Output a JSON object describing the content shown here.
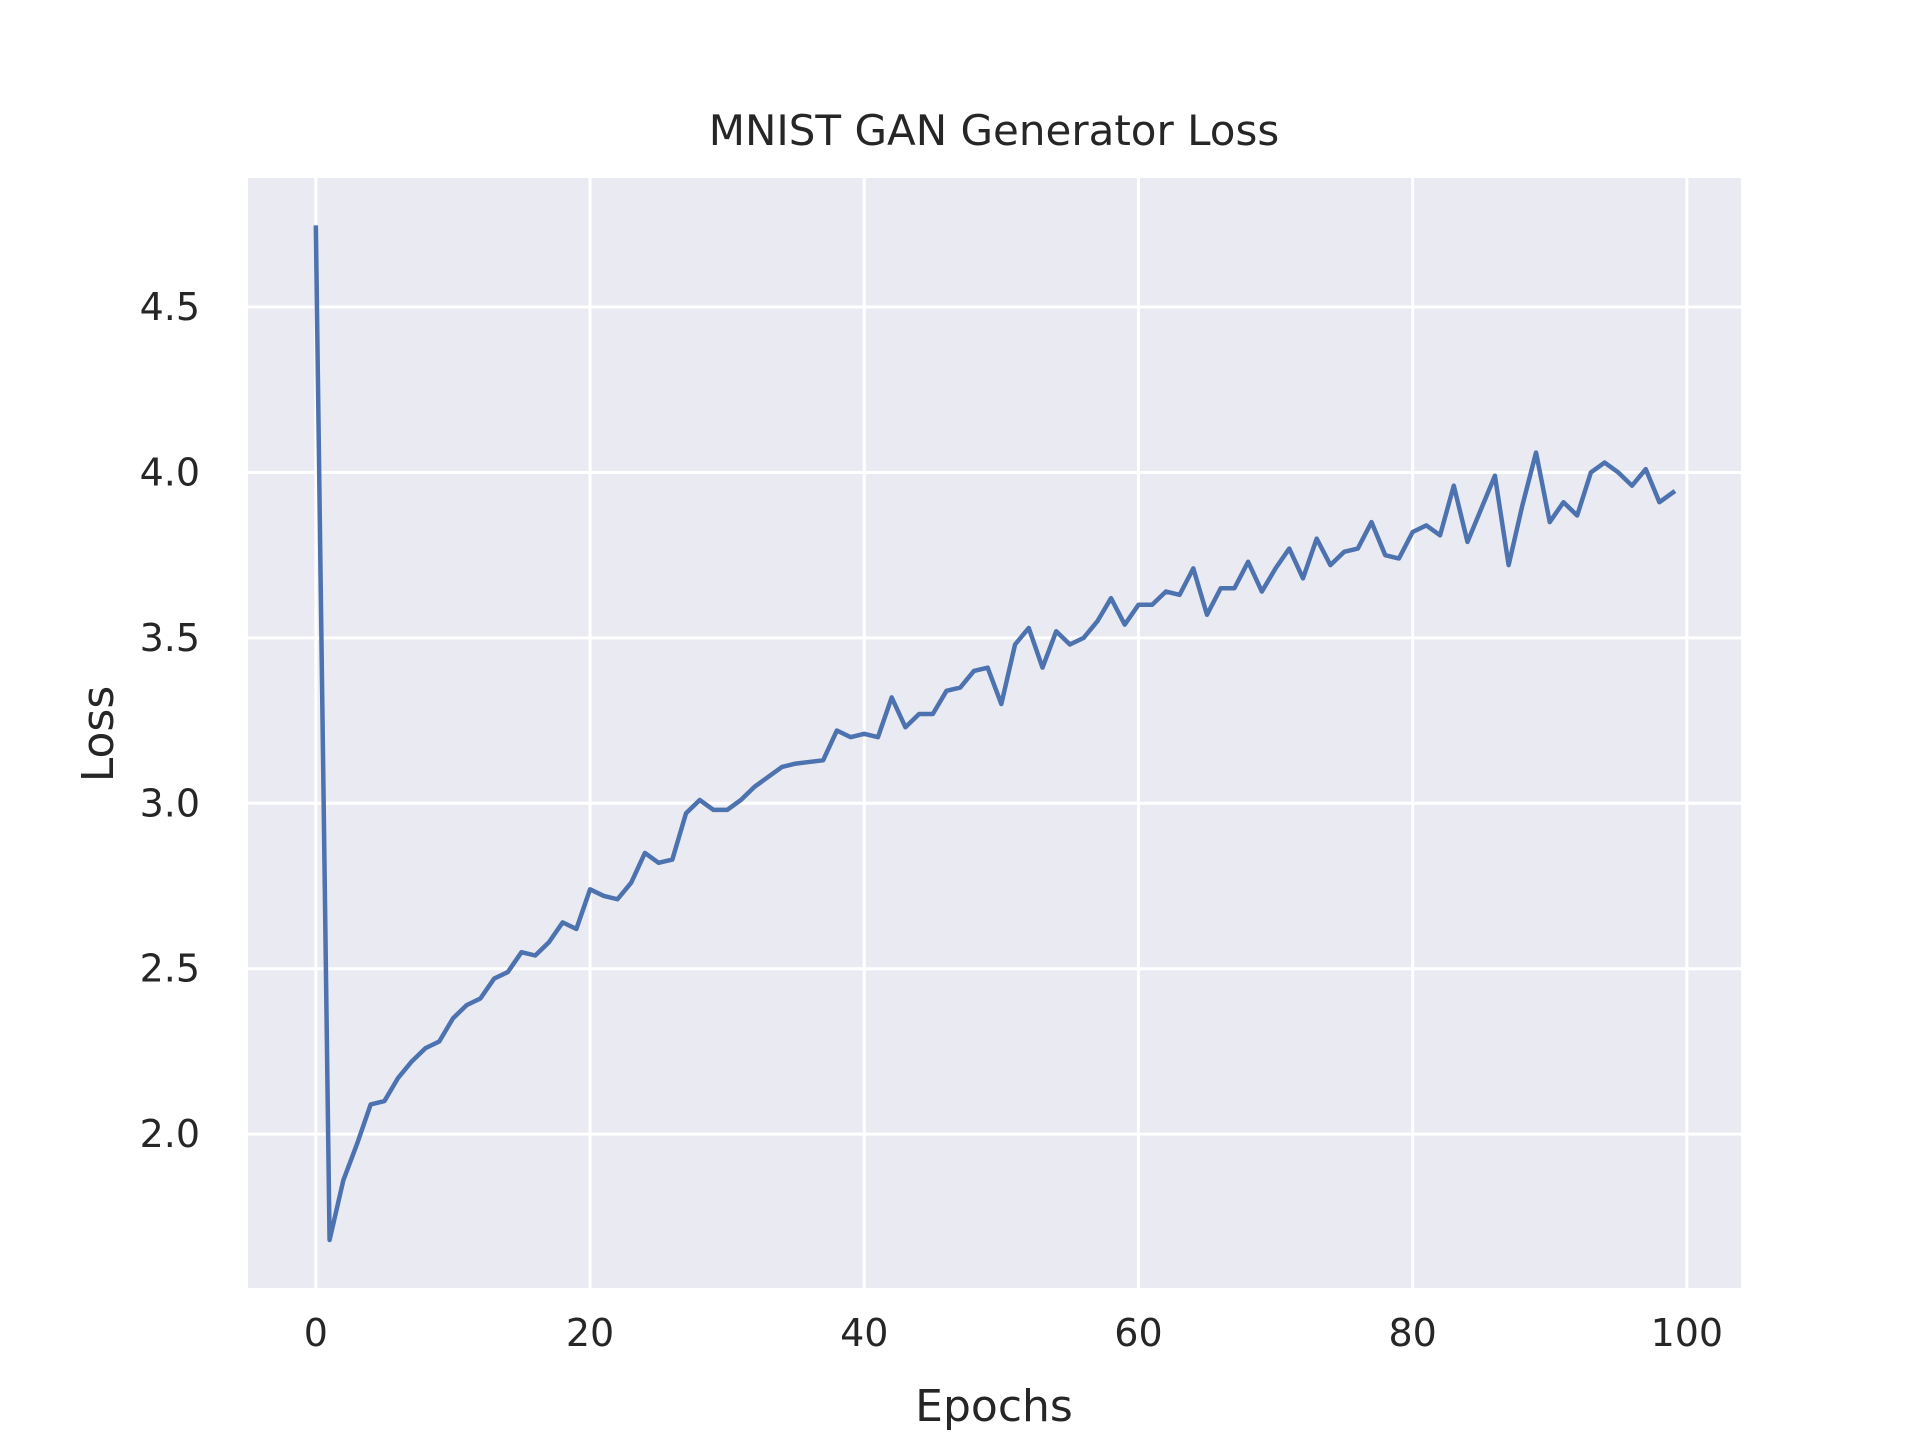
{
  "chart_data": {
    "type": "line",
    "title": "MNIST GAN Generator Loss",
    "xlabel": "Epochs",
    "ylabel": "Loss",
    "xlim": [
      -4.95,
      103.95
    ],
    "ylim": [
      1.535,
      4.89
    ],
    "x_ticks": [
      0,
      20,
      40,
      60,
      80,
      100
    ],
    "x_tick_labels": [
      "0",
      "20",
      "40",
      "60",
      "80",
      "100"
    ],
    "y_ticks": [
      2.0,
      2.5,
      3.0,
      3.5,
      4.0,
      4.5
    ],
    "y_tick_labels": [
      "2.0",
      "2.5",
      "3.0",
      "3.5",
      "4.0",
      "4.5"
    ],
    "grid": true,
    "background_color": "#eaeaf2",
    "grid_color": "#ffffff",
    "series": [
      {
        "color": "#4c72b0",
        "x": [
          0,
          1,
          2,
          3,
          4,
          5,
          6,
          7,
          8,
          9,
          10,
          11,
          12,
          13,
          14,
          15,
          16,
          17,
          18,
          19,
          20,
          21,
          22,
          23,
          24,
          25,
          26,
          27,
          28,
          29,
          30,
          31,
          32,
          33,
          34,
          35,
          36,
          37,
          38,
          39,
          40,
          41,
          42,
          43,
          44,
          45,
          46,
          47,
          48,
          49,
          50,
          51,
          52,
          53,
          54,
          55,
          56,
          57,
          58,
          59,
          60,
          61,
          62,
          63,
          64,
          65,
          66,
          67,
          68,
          69,
          70,
          71,
          72,
          73,
          74,
          75,
          76,
          77,
          78,
          79,
          80,
          81,
          82,
          83,
          84,
          85,
          86,
          87,
          88,
          89,
          90,
          91,
          92,
          93,
          94,
          95,
          96,
          97,
          98,
          99
        ],
        "values": [
          4.74,
          1.68,
          1.86,
          1.97,
          2.09,
          2.1,
          2.17,
          2.22,
          2.26,
          2.28,
          2.35,
          2.39,
          2.41,
          2.47,
          2.49,
          2.55,
          2.54,
          2.58,
          2.64,
          2.62,
          2.74,
          2.72,
          2.71,
          2.76,
          2.85,
          2.82,
          2.83,
          2.97,
          3.01,
          2.98,
          2.98,
          3.01,
          3.05,
          3.08,
          3.11,
          3.12,
          3.125,
          3.13,
          3.22,
          3.2,
          3.21,
          3.2,
          3.32,
          3.23,
          3.27,
          3.27,
          3.34,
          3.35,
          3.4,
          3.41,
          3.3,
          3.48,
          3.53,
          3.41,
          3.52,
          3.48,
          3.5,
          3.55,
          3.62,
          3.54,
          3.6,
          3.6,
          3.64,
          3.63,
          3.71,
          3.57,
          3.65,
          3.65,
          3.73,
          3.64,
          3.71,
          3.77,
          3.68,
          3.8,
          3.72,
          3.76,
          3.77,
          3.85,
          3.75,
          3.74,
          3.82,
          3.84,
          3.81,
          3.96,
          3.79,
          3.89,
          3.99,
          3.72,
          3.9,
          4.06,
          3.85,
          3.91,
          3.87,
          4.0,
          4.03,
          4.0,
          3.96,
          4.01,
          3.91,
          3.94
        ]
      }
    ]
  }
}
